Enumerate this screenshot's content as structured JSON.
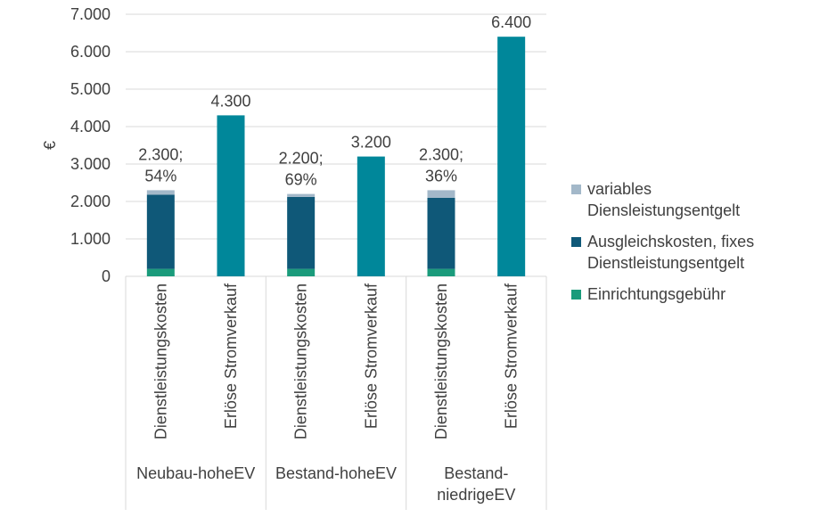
{
  "chart_data": {
    "type": "bar",
    "stacked": true,
    "ylabel": "€",
    "ylim": [
      0,
      7000
    ],
    "yticks": [
      "0",
      "1.000",
      "2.000",
      "3.000",
      "4.000",
      "5.000",
      "6.000",
      "7.000"
    ],
    "groups": [
      {
        "name": "Neubau-hoheEV",
        "name_lines": [
          "Neubau-hoheEV"
        ],
        "bars": [
          {
            "category": "Dienstleistungskosten",
            "segments": {
              "einrichtung": 200,
              "ausgleich": 1980,
              "variabel": 120
            },
            "label_lines": [
              "2.300;",
              "54%"
            ]
          },
          {
            "category": "Erlöse Stromverkauf",
            "segments": {
              "strom": 4300
            },
            "label_lines": [
              "4.300"
            ]
          }
        ]
      },
      {
        "name": "Bestand-hoheEV",
        "name_lines": [
          "Bestand-hoheEV"
        ],
        "bars": [
          {
            "category": "Dienstleistungskosten",
            "segments": {
              "einrichtung": 200,
              "ausgleich": 1920,
              "variabel": 80
            },
            "label_lines": [
              "2.200;",
              "69%"
            ]
          },
          {
            "category": "Erlöse Stromverkauf",
            "segments": {
              "strom": 3200
            },
            "label_lines": [
              "3.200"
            ]
          }
        ]
      },
      {
        "name": "Bestand-niedrigeEV",
        "name_lines": [
          "Bestand-",
          "niedrigeEV"
        ],
        "bars": [
          {
            "category": "Dienstleistungskosten",
            "segments": {
              "einrichtung": 200,
              "ausgleich": 1900,
              "variabel": 200
            },
            "label_lines": [
              "2.300;",
              "36%"
            ]
          },
          {
            "category": "Erlöse Stromverkauf",
            "segments": {
              "strom": 6400
            },
            "label_lines": [
              "6.400"
            ]
          }
        ]
      }
    ],
    "series": [
      {
        "key": "einrichtung",
        "name": "Einrichtungsgebühr",
        "color": "#1a9b7b"
      },
      {
        "key": "ausgleich",
        "name": "Ausgleichskosten, fixes Dienstleistungsentgelt",
        "color": "#0f5878"
      },
      {
        "key": "variabel",
        "name": "variables Diensleistungsentgelt",
        "color": "#a3b8c9"
      },
      {
        "key": "strom",
        "name": "Erlöse Stromverkauf",
        "color": "#00879a"
      }
    ],
    "legend": [
      {
        "lines": [
          "variables",
          "Diensleistungsentgelt"
        ],
        "color": "#a3b8c9"
      },
      {
        "lines": [
          "Ausgleichskosten, fixes",
          "Dienstleistungsentgelt"
        ],
        "color": "#0f5878"
      },
      {
        "lines": [
          "Einrichtungsgebühr"
        ],
        "color": "#1a9b7b"
      }
    ]
  }
}
